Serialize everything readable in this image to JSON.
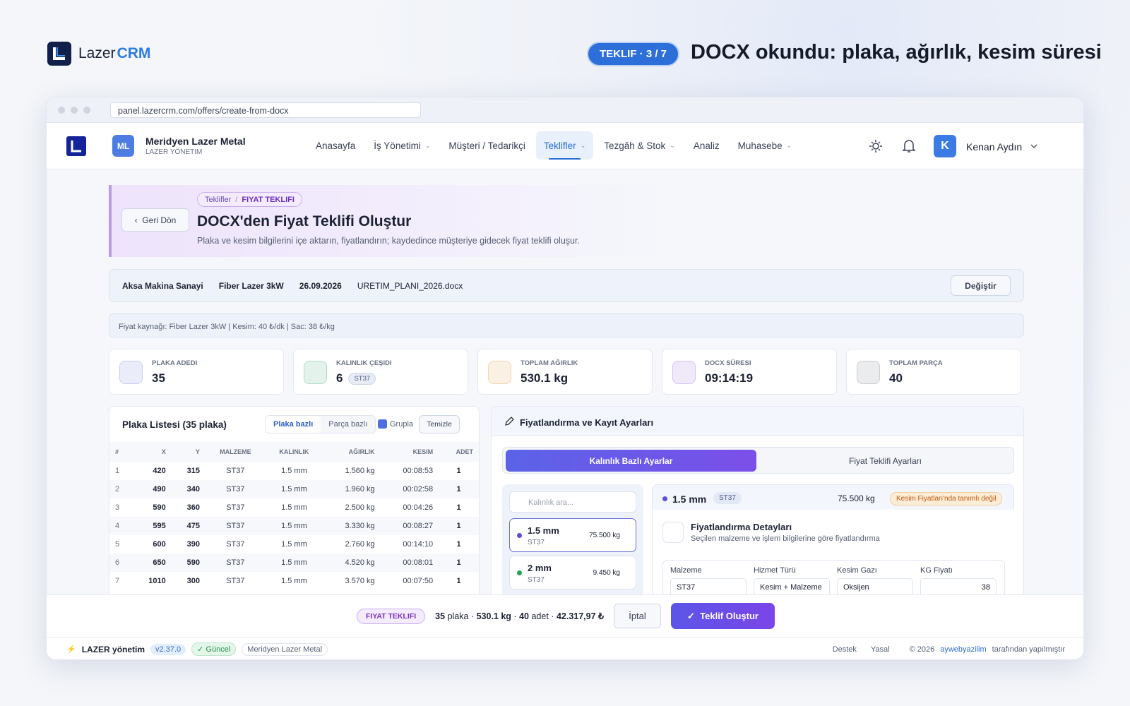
{
  "brand": {
    "name": "Lazer",
    "accent": "CRM"
  },
  "top": {
    "badge": "TEKLIF · 3 / 7",
    "headline": "DOCX okundu: plaka, ağırlık, kesim süresi"
  },
  "browser": {
    "url": "panel.lazercrm.com/offers/create-from-docx"
  },
  "nav": {
    "avatar": "ML",
    "company": "Meridyen Lazer Metal",
    "company_sub": "LAZER YÖNETIM",
    "active_index": 3,
    "items": [
      {
        "label": "Anasayfa",
        "has_menu": false
      },
      {
        "label": "İş Yönetimi",
        "has_menu": true
      },
      {
        "label": "Müşteri / Tedarikçi",
        "has_menu": false
      },
      {
        "label": "Teklifler",
        "has_menu": true
      },
      {
        "label": "Tezgâh & Stok",
        "has_menu": true
      },
      {
        "label": "Analiz",
        "has_menu": false
      },
      {
        "label": "Muhasebe",
        "has_menu": true
      }
    ],
    "user_initial": "K",
    "user_name": "Kenan Aydın"
  },
  "header": {
    "back": "Geri Dön",
    "crumb": "Teklifler",
    "crumb_sep": "/",
    "crumb_current": "FIYAT TEKLIFI",
    "title": "DOCX'den Fiyat Teklifi Oluştur",
    "subtitle": "Plaka ve kesim bilgilerini içe aktarın, fiyatlandırın; kaydedince müşteriye gidecek fiyat teklifi oluşur."
  },
  "info": {
    "customer": "Aksa Makina Sanayi",
    "machine": "Fiber Lazer 3kW",
    "date": "26.09.2026",
    "file": "URETIM_PLANI_2026.docx",
    "change": "Değiştir"
  },
  "price_source": "Fiyat kaynağı: Fiber Lazer 3kW | Kesim: 40 ₺/dk | Sac: 38 ₺/kg",
  "stats": [
    {
      "label": "PLAKA ADEDI",
      "value": "35",
      "color": "#6b6fd8"
    },
    {
      "label": "KALINLIK ÇEŞIDI",
      "value": "6",
      "badge": "ST37",
      "color": "#2fa36b"
    },
    {
      "label": "TOPLAM AĞIRLIK",
      "value": "530.1 kg",
      "color": "#d9912f"
    },
    {
      "label": "DOCX SÜRESI",
      "value": "09:14:19",
      "color": "#8a5cd8"
    },
    {
      "label": "TOPLAM PARÇA",
      "value": "40",
      "color": "#6b7280"
    }
  ],
  "plates": {
    "title": "Plaka Listesi (35 plaka)",
    "tabs": [
      "Plaka bazlı",
      "Parça bazlı"
    ],
    "group": "Grupla",
    "clear": "Temizle",
    "columns": [
      "#",
      "X",
      "Y",
      "MALZEME",
      "KALINLIK",
      "AĞIRLIK",
      "KESIM",
      "ADET"
    ],
    "rows": [
      [
        "1",
        "420",
        "315",
        "ST37",
        "1.5 mm",
        "1.560 kg",
        "00:08:53",
        "1"
      ],
      [
        "2",
        "490",
        "340",
        "ST37",
        "1.5 mm",
        "1.960 kg",
        "00:02:58",
        "1"
      ],
      [
        "3",
        "590",
        "360",
        "ST37",
        "1.5 mm",
        "2.500 kg",
        "00:04:26",
        "1"
      ],
      [
        "4",
        "595",
        "475",
        "ST37",
        "1.5 mm",
        "3.330 kg",
        "00:08:27",
        "1"
      ],
      [
        "5",
        "600",
        "390",
        "ST37",
        "1.5 mm",
        "2.760 kg",
        "00:14:10",
        "1"
      ],
      [
        "6",
        "650",
        "590",
        "ST37",
        "1.5 mm",
        "4.520 kg",
        "00:08:01",
        "1"
      ],
      [
        "7",
        "1010",
        "300",
        "ST37",
        "1.5 mm",
        "3.570 kg",
        "00:07:50",
        "1"
      ]
    ]
  },
  "pricing": {
    "title": "Fiyatlandırma ve Kayıt Ayarları",
    "tabs": [
      "Kalınlık Bazlı Ayarlar",
      "Fiyat Teklifi Ayarları"
    ],
    "search": "Kalınlık ara...",
    "thickness": [
      {
        "size": "1.5 mm",
        "material": "ST37",
        "weight": "75.500 kg",
        "color": "#5b4fd8"
      },
      {
        "size": "2 mm",
        "material": "ST37",
        "weight": "9.450 kg",
        "color": "#22a55b"
      }
    ],
    "detail": {
      "size": "1.5 mm",
      "material": "ST37",
      "weight": "75.500 kg",
      "warning": "Kesim Fiyatları'nda tanımlı değil",
      "title": "Fiyatlandırma Detayları",
      "subtitle": "Seçilen malzeme ve işlem bilgilerine göre fiyatlandırma",
      "fields": [
        {
          "label": "Malzeme",
          "value": "ST37"
        },
        {
          "label": "Hizmet Türü",
          "value": "Kesim + Malzeme"
        },
        {
          "label": "Kesim Gazı",
          "value": "Oksijen"
        },
        {
          "label": "KG Fiyatı",
          "value": "38"
        }
      ]
    }
  },
  "bottom": {
    "tag": "FIYAT TEKLIFI",
    "plates": "35",
    "plates_unit": "plaka",
    "sep": "·",
    "weight": "530.1 kg",
    "pieces": "40",
    "pieces_unit": "adet",
    "total": "42.317,97 ₺",
    "cancel": "İptal",
    "create": "Teklif Oluştur"
  },
  "footer": {
    "brand": "LAZER yönetim",
    "version": "v2.37.0",
    "status": "Güncel",
    "company": "Meridyen Lazer Metal",
    "support": "Destek",
    "legal": "Yasal",
    "copyright": "© 2026",
    "maker": "aywebyazilim",
    "maker_suffix": "tarafından yapılmıştır"
  }
}
